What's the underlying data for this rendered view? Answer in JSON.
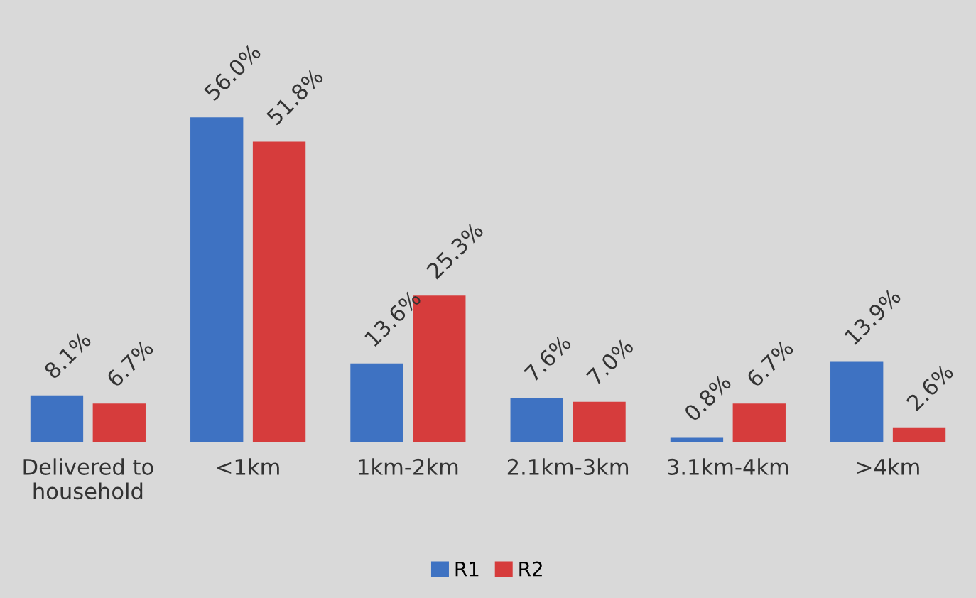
{
  "chart_data": {
    "type": "bar",
    "categories": [
      "Delivered to\nhousehold",
      "<1km",
      "1km-2km",
      "2.1km-3km",
      "3.1km-4km",
      ">4km"
    ],
    "series": [
      {
        "name": "R1",
        "color": "#3e72c2",
        "values": [
          8.1,
          56.0,
          13.6,
          7.6,
          0.8,
          13.9
        ],
        "value_labels": [
          "8.1%",
          "56.0%",
          "13.6%",
          "7.6%",
          "0.8%",
          "13.9%"
        ]
      },
      {
        "name": "R2",
        "color": "#d63c3c",
        "values": [
          6.7,
          51.8,
          25.3,
          7.0,
          6.7,
          2.6
        ],
        "value_labels": [
          "6.7%",
          "51.8%",
          "25.3%",
          "7.0%",
          "6.7%",
          "2.6%"
        ]
      }
    ],
    "legend": "bottom",
    "grid": false
  }
}
